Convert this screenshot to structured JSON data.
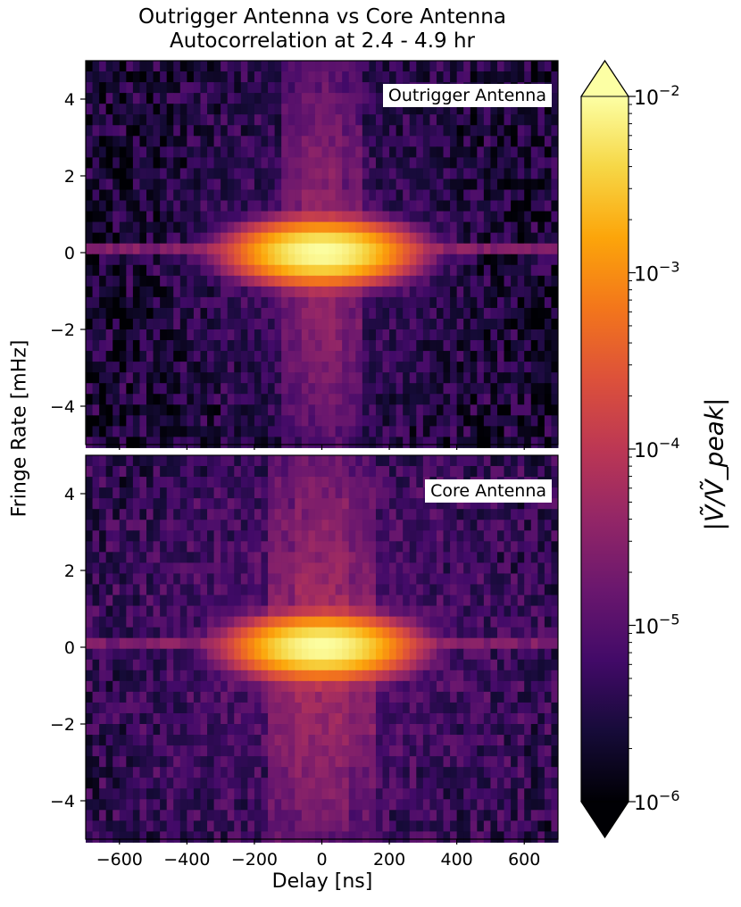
{
  "chart_data": {
    "type": "heatmap",
    "title": [
      "Outrigger Antenna vs Core Antenna",
      "Autocorrelation at 2.4 - 4.9 hr"
    ],
    "xlabel": "Delay [ns]",
    "ylabel": "Fringe Rate [mHz]",
    "xlim": [
      -700,
      700
    ],
    "ylim": [
      -5,
      5
    ],
    "xticks": [
      -600,
      -400,
      -200,
      0,
      200,
      400,
      600
    ],
    "xtick_labels": [
      "−600",
      "−400",
      "−200",
      "0",
      "200",
      "400",
      "600"
    ],
    "yticks": [
      4,
      2,
      0,
      -2,
      -4
    ],
    "ytick_labels": [
      "4",
      "2",
      "0",
      "−2",
      "−4"
    ],
    "colormap": "inferno",
    "colorbar": {
      "label": "|Ṽ/Ṽ_peak|",
      "scale": "log",
      "vmin": 1e-06,
      "vmax": 0.01,
      "extend": "both",
      "ticks": [
        0.01,
        0.001,
        0.0001,
        1e-05,
        1e-06
      ],
      "tick_base": "10",
      "tick_exponents": [
        "−2",
        "−3",
        "−4",
        "−5",
        "−6"
      ]
    },
    "panels": [
      {
        "name": "Outrigger Antenna",
        "delay_bin_width_ns": 20,
        "fringe_bin_height_mhz": 0.28,
        "peak_value": 0.01,
        "background_level": 2e-06,
        "horizontal_streak_level": 5e-05,
        "vertical_streak_level": 2e-05,
        "vertical_streak_halfwidth_ns": 130
      },
      {
        "name": "Core Antenna",
        "delay_bin_width_ns": 20,
        "fringe_bin_height_mhz": 0.28,
        "peak_value": 0.01,
        "background_level": 3e-06,
        "horizontal_streak_level": 4e-05,
        "vertical_streak_level": 3e-05,
        "vertical_streak_halfwidth_ns": 160
      }
    ]
  },
  "labels": {
    "title_line1": "Outrigger Antenna vs Core Antenna",
    "title_line2": "Autocorrelation at 2.4 - 4.9 hr",
    "panel_top": "Outrigger Antenna",
    "panel_bottom": "Core Antenna",
    "xlabel": "Delay [ns]",
    "ylabel": "Fringe Rate [mHz]",
    "cblabel": "|Ṽ/Ṽ_peak|"
  }
}
